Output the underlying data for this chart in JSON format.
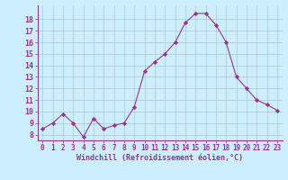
{
  "x": [
    0,
    1,
    2,
    3,
    4,
    5,
    6,
    7,
    8,
    9,
    10,
    11,
    12,
    13,
    14,
    15,
    16,
    17,
    18,
    19,
    20,
    21,
    22,
    23
  ],
  "y": [
    8.5,
    9.0,
    9.8,
    9.0,
    7.8,
    9.4,
    8.5,
    8.8,
    9.0,
    10.4,
    13.5,
    14.3,
    15.0,
    16.0,
    17.7,
    18.5,
    18.5,
    17.5,
    16.0,
    13.0,
    12.0,
    11.0,
    10.6,
    10.1
  ],
  "line_color": "#993399",
  "marker": "D",
  "marker_size": 2.2,
  "bg_color": "#cceeff",
  "grid_color": "#aacccc",
  "xlabel": "Windchill (Refroidissement éolien,°C)",
  "xlabel_color": "#993399",
  "tick_color": "#993399",
  "spine_color": "#993399",
  "ylim": [
    7.5,
    19.2
  ],
  "xlim": [
    -0.5,
    23.5
  ],
  "yticks": [
    8,
    9,
    10,
    11,
    12,
    13,
    14,
    15,
    16,
    17,
    18
  ],
  "xticks": [
    0,
    1,
    2,
    3,
    4,
    5,
    6,
    7,
    8,
    9,
    10,
    11,
    12,
    13,
    14,
    15,
    16,
    17,
    18,
    19,
    20,
    21,
    22,
    23
  ],
  "tick_fontsize": 5.5,
  "xlabel_fontsize": 6.0,
  "linewidth": 0.8
}
